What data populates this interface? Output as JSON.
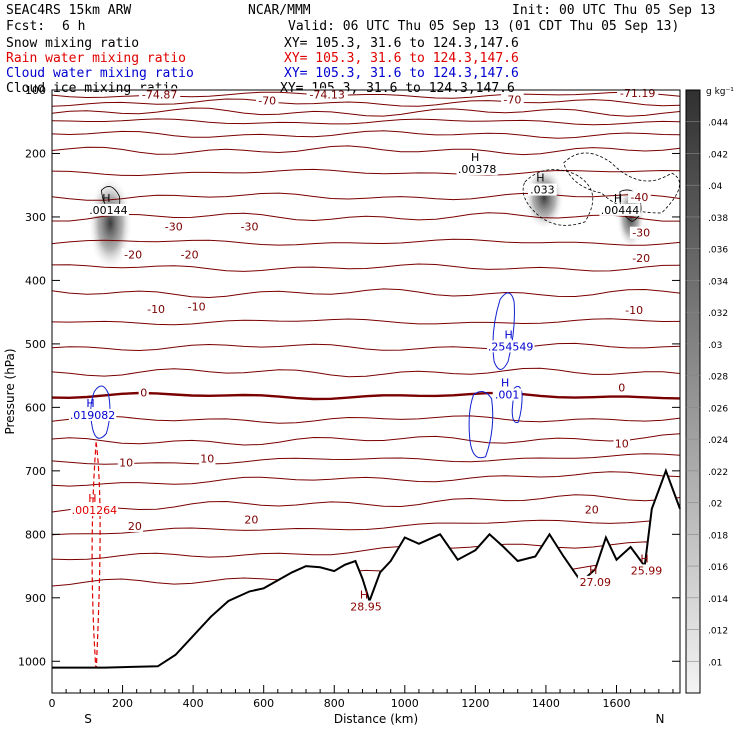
{
  "header": {
    "model": "SEAC4RS 15km ARW",
    "center": "NCAR/MMM",
    "init": "Init: 00 UTC Thu 05 Sep 13",
    "fcst_label": "Fcst:",
    "fcst_value": "6 h",
    "valid": "Valid: 06 UTC Thu 05 Sep 13 (01 CDT Thu 05 Sep 13)",
    "fields": [
      {
        "name": "Snow mixing ratio",
        "xy": "XY= 105.3, 31.6 to 124.3,147.6",
        "color": "#000000"
      },
      {
        "name": "Rain water mixing ratio",
        "xy": "XY= 105.3, 31.6 to 124.3,147.6",
        "color": "#e00000"
      },
      {
        "name": "Cloud water mixing ratio",
        "xy": "XY= 105.3, 31.6 to 124.3,147.6",
        "color": "#0000d0"
      },
      {
        "name": "Cloud ice mixing ratio",
        "xy": "XY= 105.3, 31.6 to 124.3,147.6",
        "color": "#000000"
      }
    ]
  },
  "chart_data": {
    "type": "cross-section",
    "xlabel": "Distance (km)",
    "ylabel": "Pressure (hPa)",
    "xlim": [
      0,
      1780
    ],
    "ylim": [
      1050,
      100
    ],
    "x_ticks": [
      0,
      200,
      400,
      600,
      800,
      1000,
      1200,
      1400,
      1600
    ],
    "y_ticks": [
      100,
      200,
      300,
      400,
      500,
      600,
      700,
      800,
      900,
      1000
    ],
    "x_tick_labels": [
      "0",
      "200",
      "400",
      "600",
      "800",
      "1000",
      "1200",
      "1400",
      "1600"
    ],
    "y_tick_labels": [
      "100",
      "200",
      "300",
      "400",
      "500",
      "600",
      "700",
      "800",
      "900",
      "1000"
    ],
    "endpoint_labels": {
      "left": "S",
      "right": "N"
    },
    "colorbar": {
      "unit": "g kg⁻¹",
      "ticks": [
        "0.01",
        "0.012",
        "0.014",
        "0.016",
        "0.018",
        "0.02",
        "0.022",
        "0.024",
        "0.026",
        "0.028",
        "0.03",
        "0.032",
        "0.034",
        "0.036",
        "0.038",
        "0.04",
        "0.042",
        "0.044"
      ],
      "tick_labels": [
        ".01",
        ".012",
        ".014",
        ".016",
        ".018",
        ".02",
        ".022",
        ".024",
        ".026",
        ".028",
        ".03",
        ".032",
        ".034",
        ".036",
        ".038",
        ".04",
        ".042",
        ".044"
      ]
    },
    "temperature_contour_labels": [
      {
        "text": "-74.87",
        "x": 305,
        "p": 110
      },
      {
        "text": "-74.13",
        "x": 780,
        "p": 110
      },
      {
        "text": "-71.19",
        "x": 1660,
        "p": 108
      },
      {
        "text": "-70",
        "x": 610,
        "p": 120
      },
      {
        "text": "-70",
        "x": 1305,
        "p": 118
      },
      {
        "text": "-40",
        "x": 1665,
        "p": 272
      },
      {
        "text": "-30",
        "x": 345,
        "p": 318
      },
      {
        "text": "-30",
        "x": 560,
        "p": 318
      },
      {
        "text": "-30",
        "x": 1670,
        "p": 328
      },
      {
        "text": "-20",
        "x": 230,
        "p": 362
      },
      {
        "text": "-20",
        "x": 390,
        "p": 362
      },
      {
        "text": "-20",
        "x": 1670,
        "p": 368
      },
      {
        "text": "-10",
        "x": 295,
        "p": 448
      },
      {
        "text": "-10",
        "x": 410,
        "p": 444
      },
      {
        "text": "-10",
        "x": 1650,
        "p": 450
      },
      {
        "text": "0",
        "x": 260,
        "p": 580
      },
      {
        "text": "0",
        "x": 1615,
        "p": 572
      },
      {
        "text": "10",
        "x": 210,
        "p": 690
      },
      {
        "text": "10",
        "x": 440,
        "p": 684
      },
      {
        "text": "10",
        "x": 1615,
        "p": 660
      },
      {
        "text": "20",
        "x": 235,
        "p": 790
      },
      {
        "text": "20",
        "x": 565,
        "p": 780
      },
      {
        "text": "20",
        "x": 1530,
        "p": 764
      }
    ],
    "maxima_labels": [
      {
        "field": "snow",
        "text": ".00144",
        "x": 160,
        "p": 292,
        "color": "#000000"
      },
      {
        "field": "snow",
        "text": ".00378",
        "x": 1205,
        "p": 228,
        "color": "#000000"
      },
      {
        "field": "snow",
        "text": ".033",
        "x": 1390,
        "p": 260,
        "color": "#000000"
      },
      {
        "field": "snow",
        "text": ".00444",
        "x": 1610,
        "p": 292,
        "color": "#000000"
      },
      {
        "field": "cloud_water",
        "text": ".254549",
        "x": 1300,
        "p": 507,
        "color": "#0000d0"
      },
      {
        "field": "cloud_water",
        "text": ".001",
        "x": 1290,
        "p": 583,
        "color": "#0000d0"
      },
      {
        "field": "cloud_water",
        "text": ".019082",
        "x": 115,
        "p": 615,
        "color": "#0000d0"
      },
      {
        "field": "rain_water",
        "text": ".001264",
        "x": 120,
        "p": 765,
        "color": "#e00000"
      },
      {
        "field": "temperature",
        "text": "28.95",
        "x": 890,
        "p": 917,
        "color": "#8b0000"
      },
      {
        "field": "temperature",
        "text": "27.09",
        "x": 1540,
        "p": 878,
        "color": "#8b0000"
      },
      {
        "field": "temperature",
        "text": "25.99",
        "x": 1685,
        "p": 860,
        "color": "#8b0000"
      }
    ],
    "terrain_profile": {
      "distance_km": [
        0,
        150,
        300,
        350,
        400,
        450,
        500,
        560,
        600,
        680,
        720,
        760,
        800,
        830,
        860,
        880,
        900,
        930,
        960,
        1000,
        1040,
        1100,
        1150,
        1200,
        1240,
        1280,
        1320,
        1370,
        1410,
        1450,
        1500,
        1540,
        1570,
        1600,
        1640,
        1680,
        1700,
        1740,
        1780
      ],
      "pressure_hpa": [
        1010,
        1010,
        1008,
        990,
        960,
        930,
        905,
        890,
        885,
        860,
        850,
        852,
        858,
        848,
        842,
        870,
        905,
        860,
        842,
        805,
        815,
        800,
        840,
        825,
        800,
        820,
        842,
        835,
        800,
        835,
        875,
        855,
        805,
        840,
        820,
        850,
        760,
        700,
        760
      ]
    },
    "reference_temperature_contours_hpa_left": [
      108,
      120,
      135,
      150,
      170,
      195,
      230,
      268,
      300,
      340,
      380,
      420,
      465,
      505,
      545,
      582,
      620,
      655,
      688,
      720,
      760,
      800,
      840,
      880
    ]
  }
}
